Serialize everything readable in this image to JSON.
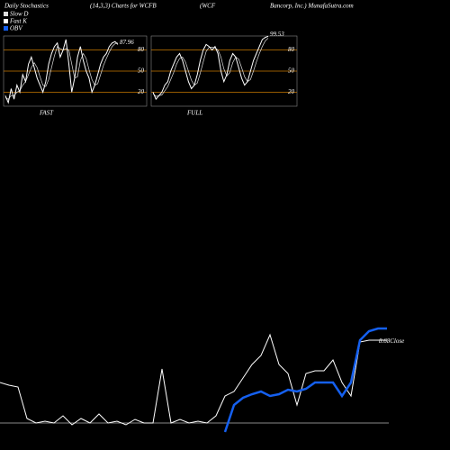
{
  "header": [
    "Daily Stochastics",
    "(14,3,3) Charts for WCFB",
    "(WCF",
    "Bancorp, Inc.) MunafaSutra.com"
  ],
  "chart_data": [
    {
      "type": "line",
      "title": "FAST",
      "ylim": [
        0,
        100
      ],
      "yticks": [
        80,
        50,
        20
      ],
      "grid": true,
      "grid_color": "#c87800",
      "series": [
        {
          "name": "Slow D",
          "color": "#dddddd",
          "values": [
            12,
            10,
            15,
            15,
            20,
            22,
            30,
            35,
            45,
            55,
            62,
            55,
            42,
            30,
            28,
            38,
            55,
            72,
            85,
            82,
            80,
            82,
            80,
            60,
            40,
            42,
            65,
            75,
            68,
            52,
            38,
            30,
            32,
            45,
            58,
            68,
            77,
            85,
            89,
            90
          ]
        },
        {
          "name": "Fast K",
          "color": "#ffffff",
          "values": [
            15,
            5,
            25,
            10,
            30,
            20,
            45,
            35,
            60,
            70,
            55,
            40,
            30,
            20,
            35,
            60,
            75,
            85,
            90,
            70,
            80,
            95,
            60,
            20,
            40,
            70,
            85,
            65,
            50,
            40,
            20,
            30,
            45,
            60,
            70,
            75,
            85,
            90,
            92,
            87.96
          ]
        }
      ]
    },
    {
      "type": "line",
      "title": "FULL",
      "ylim": [
        0,
        100
      ],
      "yticks": [
        80,
        50,
        20
      ],
      "grid": true,
      "grid_color": "#c87800",
      "series": [
        {
          "color": "#dddddd",
          "values": [
            18,
            14,
            15,
            16,
            22,
            28,
            38,
            48,
            60,
            68,
            70,
            63,
            50,
            37,
            30,
            33,
            47,
            63,
            78,
            84,
            84,
            83,
            80,
            70,
            53,
            43,
            48,
            62,
            70,
            67,
            55,
            42,
            35,
            38,
            50,
            63,
            75,
            85,
            93,
            97
          ]
        },
        {
          "color": "#ffffff",
          "values": [
            20,
            10,
            15,
            20,
            30,
            35,
            50,
            60,
            70,
            75,
            65,
            50,
            35,
            25,
            30,
            45,
            65,
            80,
            88,
            85,
            80,
            85,
            75,
            50,
            35,
            45,
            65,
            75,
            70,
            55,
            40,
            30,
            35,
            50,
            65,
            75,
            85,
            95,
            98,
            99.53
          ]
        }
      ]
    },
    {
      "type": "line",
      "ylim": [
        7.56,
        8.86
      ],
      "y2lim": [
        1000,
        14000
      ],
      "series": [
        {
          "name": "Close",
          "color": "#ffffff",
          "values": [
            8.21,
            8.18,
            8.16,
            7.81,
            7.76,
            7.78,
            7.76,
            7.84,
            7.74,
            7.81,
            7.76,
            7.86,
            7.76,
            7.78,
            7.74,
            7.8,
            7.76,
            7.76,
            8.36,
            7.76,
            7.8,
            7.76,
            7.78,
            7.76,
            7.84,
            8.06,
            8.11,
            8.26,
            8.41,
            8.51,
            8.74,
            8.41,
            8.31,
            7.96,
            8.31,
            8.34,
            8.34,
            8.46,
            8.21,
            8.06,
            8.66,
            8.68,
            8.68,
            8.68
          ]
        },
        {
          "name": "OBV",
          "color": "#1560f0",
          "axis": "y2",
          "values": [
            null,
            null,
            null,
            null,
            null,
            null,
            null,
            null,
            null,
            null,
            null,
            null,
            null,
            null,
            null,
            null,
            null,
            null,
            null,
            null,
            null,
            null,
            null,
            null,
            null,
            2000,
            5000,
            5800,
            6200,
            6500,
            6000,
            6200,
            6700,
            6500,
            6800,
            7500,
            7500,
            7500,
            6000,
            7500,
            12200,
            13200,
            13500,
            13500
          ]
        }
      ]
    }
  ]
}
